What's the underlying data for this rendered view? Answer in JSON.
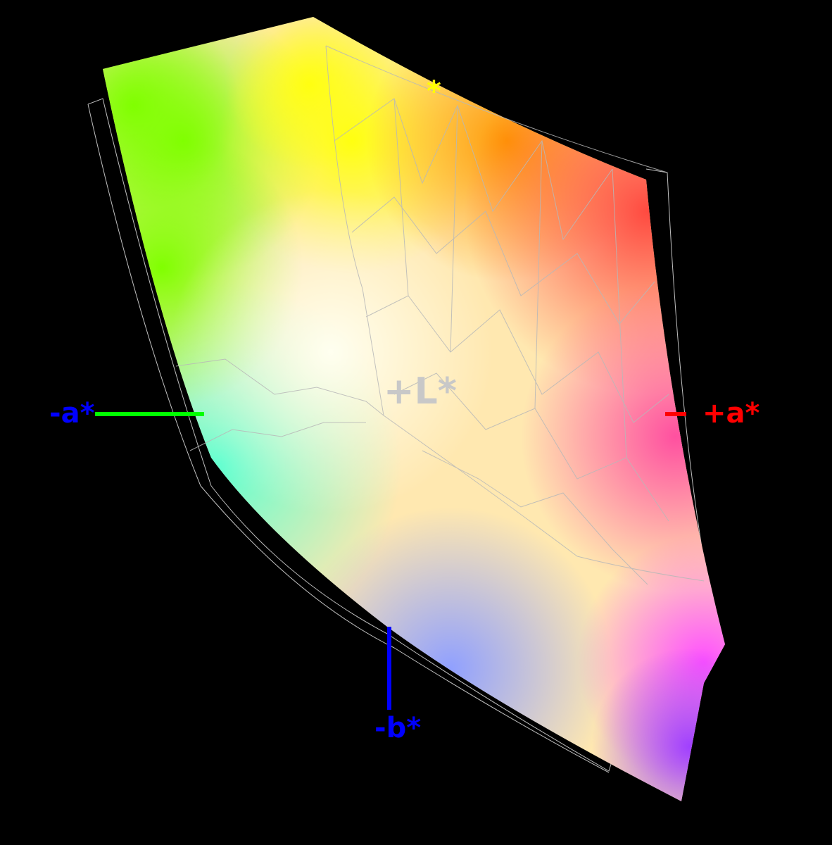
{
  "axes": {
    "neg_a": {
      "label": "-a*",
      "color": "#0000ff",
      "line_color": "#00ff00"
    },
    "pos_a": {
      "label": "+a*",
      "color": "#ff0000",
      "line_color": "#ff0000"
    },
    "neg_b": {
      "label": "-b*",
      "color": "#0000ff",
      "line_color": "#0000ff"
    },
    "pos_b": {
      "label": "*",
      "color": "#ffff00"
    },
    "pos_L": {
      "label": "+L*",
      "color": "#c8c8c8"
    }
  },
  "colors": {
    "background": "#000000",
    "wireframe": "#c0c0c0"
  }
}
